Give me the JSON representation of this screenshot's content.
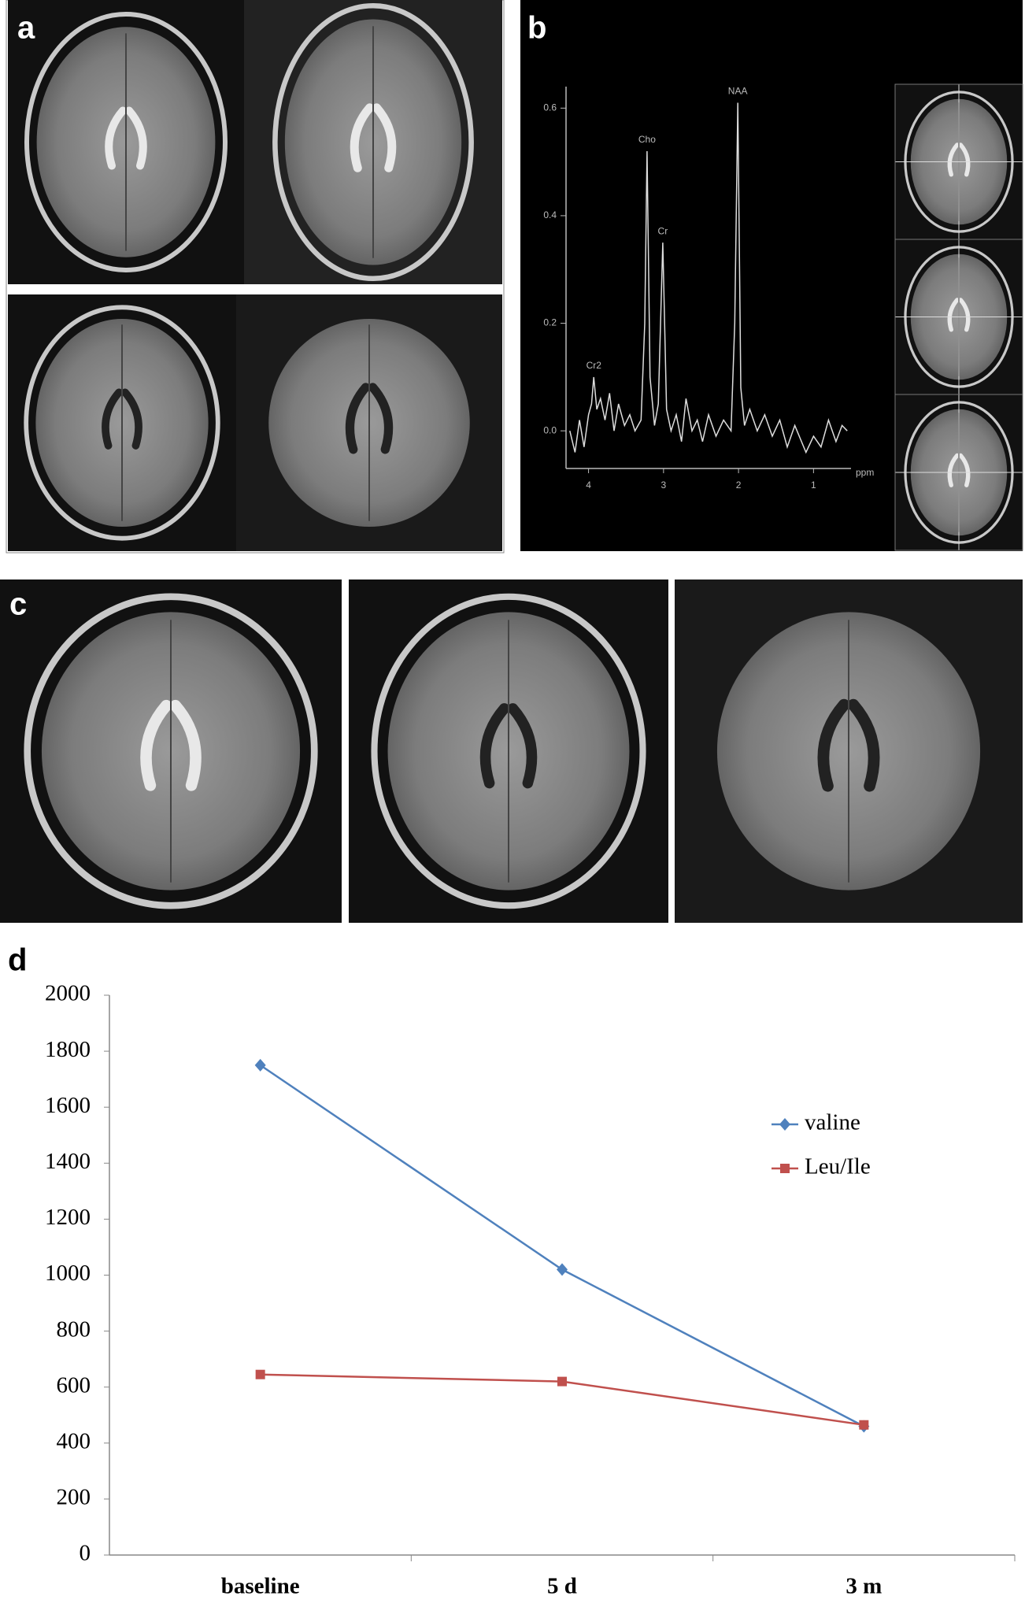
{
  "panel_labels": [
    "a",
    "b",
    "c",
    "d"
  ],
  "chart_data": [
    {
      "type": "line",
      "x": [
        4.25,
        4.18,
        4.12,
        4.06,
        4.0,
        3.96,
        3.93,
        3.89,
        3.84,
        3.78,
        3.72,
        3.66,
        3.6,
        3.52,
        3.45,
        3.38,
        3.3,
        3.25,
        3.22,
        3.18,
        3.12,
        3.07,
        3.01,
        2.96,
        2.9,
        2.83,
        2.76,
        2.7,
        2.62,
        2.55,
        2.48,
        2.4,
        2.3,
        2.2,
        2.1,
        2.05,
        2.01,
        1.97,
        1.92,
        1.85,
        1.75,
        1.65,
        1.55,
        1.45,
        1.35,
        1.25,
        1.1,
        1.0,
        0.9,
        0.8,
        0.7,
        0.62,
        0.55
      ],
      "series": [
        {
          "color": "#dddddd",
          "values": [
            0.0,
            -0.04,
            0.02,
            -0.03,
            0.03,
            0.05,
            0.1,
            0.04,
            0.06,
            0.02,
            0.07,
            0.0,
            0.05,
            0.01,
            0.03,
            0.0,
            0.02,
            0.2,
            0.52,
            0.1,
            0.01,
            0.05,
            0.35,
            0.04,
            0.0,
            0.03,
            -0.02,
            0.06,
            0.0,
            0.02,
            -0.02,
            0.03,
            -0.01,
            0.02,
            0.0,
            0.2,
            0.61,
            0.08,
            0.01,
            0.04,
            0.0,
            0.03,
            -0.01,
            0.02,
            -0.03,
            0.01,
            -0.04,
            -0.01,
            -0.03,
            0.02,
            -0.02,
            0.01,
            0.0
          ]
        }
      ],
      "xlim": [
        4.3,
        0.5
      ],
      "xticks": [
        4,
        3,
        2,
        1
      ],
      "x_label": "ppm",
      "ylim": [
        -0.07,
        0.64
      ],
      "yticks": [
        {
          "value": 0,
          "label": "0.0"
        },
        0.2,
        0.4,
        0.6
      ],
      "annotations": [
        {
          "text": "Cr2",
          "x": 3.93,
          "y": 0.1
        },
        {
          "text": "Cho",
          "x": 3.22,
          "y": 0.52
        },
        {
          "text": "Cr",
          "x": 3.01,
          "y": 0.35
        },
        {
          "text": "NAA",
          "x": 2.01,
          "y": 0.61
        }
      ]
    },
    {
      "type": "line",
      "categories": [
        "baseline",
        "5 d",
        "3 m"
      ],
      "series": [
        {
          "name": "valine",
          "color": "#4f81bd",
          "marker": "diamond",
          "values": [
            1750,
            1020,
            460
          ]
        },
        {
          "name": "Leu/Ile",
          "color": "#c0504d",
          "marker": "square",
          "values": [
            645,
            620,
            465
          ]
        }
      ],
      "ylim": [
        0,
        2000
      ],
      "yticks": [
        0,
        200,
        400,
        600,
        800,
        1000,
        1200,
        1400,
        1600,
        1800,
        2000
      ],
      "legend": "right"
    }
  ]
}
